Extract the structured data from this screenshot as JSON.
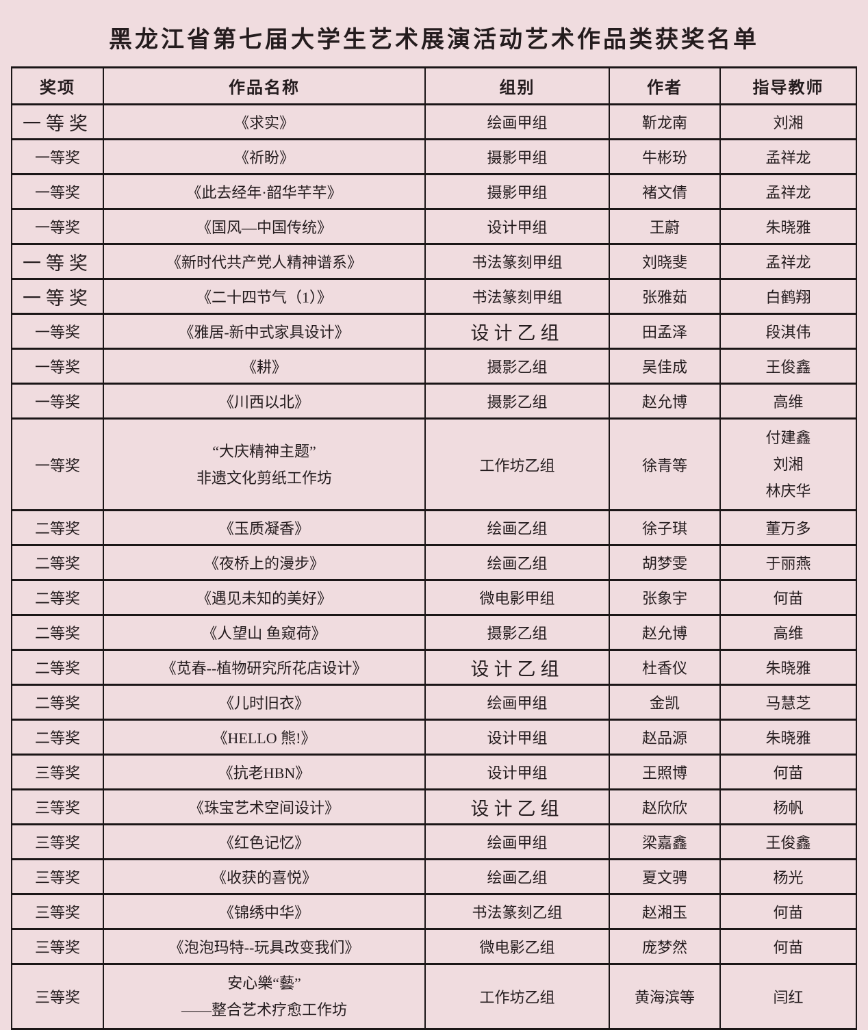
{
  "title": "黑龙江省第七届大学生艺术展演活动艺术作品类获奖名单",
  "colors": {
    "background": "#f0dcdf",
    "border": "#1b1617",
    "text": "#241c1e"
  },
  "table": {
    "headers": [
      "奖项",
      "作品名称",
      "组别",
      "作者",
      "指导教师"
    ],
    "rows": [
      {
        "award": "一等奖",
        "work": "《求实》",
        "group": "绘画甲组",
        "author": "靳龙南",
        "teacher": "刘湘",
        "award_large": true
      },
      {
        "award": "一等奖",
        "work": "《祈盼》",
        "group": "摄影甲组",
        "author": "牛彬玢",
        "teacher": "孟祥龙"
      },
      {
        "award": "一等奖",
        "work": "《此去经年·韶华芊芊》",
        "group": "摄影甲组",
        "author": "褚文倩",
        "teacher": "孟祥龙"
      },
      {
        "award": "一等奖",
        "work": "《国风—中国传统》",
        "group": "设计甲组",
        "author": "王蔚",
        "teacher": "朱晓雅"
      },
      {
        "award": "一等奖",
        "work": "《新时代共产党人精神谱系》",
        "group": "书法篆刻甲组",
        "author": "刘晓斐",
        "teacher": "孟祥龙",
        "award_large": true
      },
      {
        "award": "一等奖",
        "work": "《二十四节气（1）》",
        "group": "书法篆刻甲组",
        "author": "张雅茹",
        "teacher": "白鹤翔",
        "award_large": true
      },
      {
        "award": "一等奖",
        "work": "《雅居-新中式家具设计》",
        "group": "设计乙组",
        "author": "田孟泽",
        "teacher": "段淇伟",
        "group_large": true
      },
      {
        "award": "一等奖",
        "work": "《耕》",
        "group": "摄影乙组",
        "author": "吴佳成",
        "teacher": "王俊鑫"
      },
      {
        "award": "一等奖",
        "work": "《川西以北》",
        "group": "摄影乙组",
        "author": "赵允博",
        "teacher": "高维"
      },
      {
        "award": "一等奖",
        "work": "“大庆精神主题”\n非遗文化剪纸工作坊",
        "group": "工作坊乙组",
        "author": "徐青等",
        "teacher": "付建鑫\n刘湘\n林庆华"
      },
      {
        "award": "二等奖",
        "work": "《玉质凝香》",
        "group": "绘画乙组",
        "author": "徐子琪",
        "teacher": "董万多"
      },
      {
        "award": "二等奖",
        "work": "《夜桥上的漫步》",
        "group": "绘画乙组",
        "author": "胡梦雯",
        "teacher": "于丽燕"
      },
      {
        "award": "二等奖",
        "work": "《遇见未知的美好》",
        "group": "微电影甲组",
        "author": "张象宇",
        "teacher": "何苗"
      },
      {
        "award": "二等奖",
        "work": "《人望山 鱼窥荷》",
        "group": "摄影乙组",
        "author": "赵允博",
        "teacher": "高维"
      },
      {
        "award": "二等奖",
        "work": "《苋春--植物研究所花店设计》",
        "group": "设计乙组",
        "author": "杜香仪",
        "teacher": "朱晓雅",
        "group_large": true
      },
      {
        "award": "二等奖",
        "work": "《儿时旧衣》",
        "group": "绘画甲组",
        "author": "金凯",
        "teacher": "马慧芝"
      },
      {
        "award": "二等奖",
        "work": "《HELLO 熊!》",
        "group": "设计甲组",
        "author": "赵品源",
        "teacher": "朱晓雅"
      },
      {
        "award": "三等奖",
        "work": "《抗老HBN》",
        "group": "设计甲组",
        "author": "王照博",
        "teacher": "何苗"
      },
      {
        "award": "三等奖",
        "work": "《珠宝艺术空间设计》",
        "group": "设计乙组",
        "author": "赵欣欣",
        "teacher": "杨帆",
        "group_large": true
      },
      {
        "award": "三等奖",
        "work": "《红色记忆》",
        "group": "绘画甲组",
        "author": "梁嘉鑫",
        "teacher": "王俊鑫"
      },
      {
        "award": "三等奖",
        "work": "《收获的喜悦》",
        "group": "绘画乙组",
        "author": "夏文骋",
        "teacher": "杨光"
      },
      {
        "award": "三等奖",
        "work": "《锦绣中华》",
        "group": "书法篆刻乙组",
        "author": "赵湘玉",
        "teacher": "何苗"
      },
      {
        "award": "三等奖",
        "work": "《泡泡玛特--玩具改变我们》",
        "group": "微电影乙组",
        "author": "庞梦然",
        "teacher": "何苗"
      },
      {
        "award": "三等奖",
        "work": "安心樂“藝”\n——整合艺术疗愈工作坊",
        "group": "工作坊乙组",
        "author": "黄海滨等",
        "teacher": "闫红"
      }
    ]
  }
}
